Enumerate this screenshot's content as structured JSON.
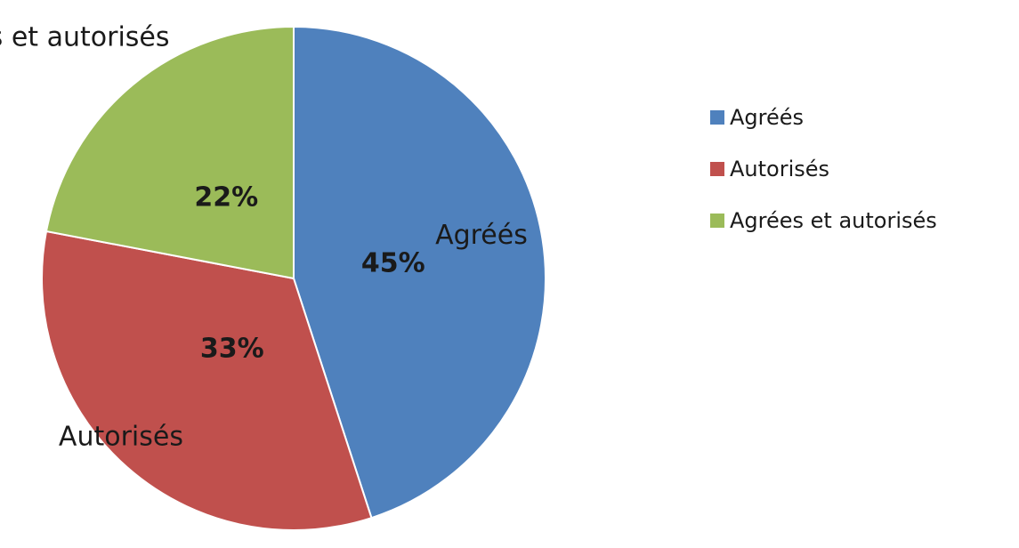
{
  "chart_data": {
    "type": "pie",
    "categories": [
      "Agréés",
      "Autorisés",
      "Agrées et autorisés"
    ],
    "values": [
      45,
      33,
      22
    ],
    "value_labels": [
      "45%",
      "33%",
      "22%"
    ],
    "slice_labels": [
      "Agréés",
      "Autorisés",
      "Agréés et autorisés"
    ],
    "colors": [
      "#4f81bd",
      "#c0504d",
      "#9bbb59"
    ],
    "legend": {
      "placement": "right",
      "entries": [
        "Agréés",
        "Autorisés",
        "Agrées et autorisés"
      ]
    }
  }
}
